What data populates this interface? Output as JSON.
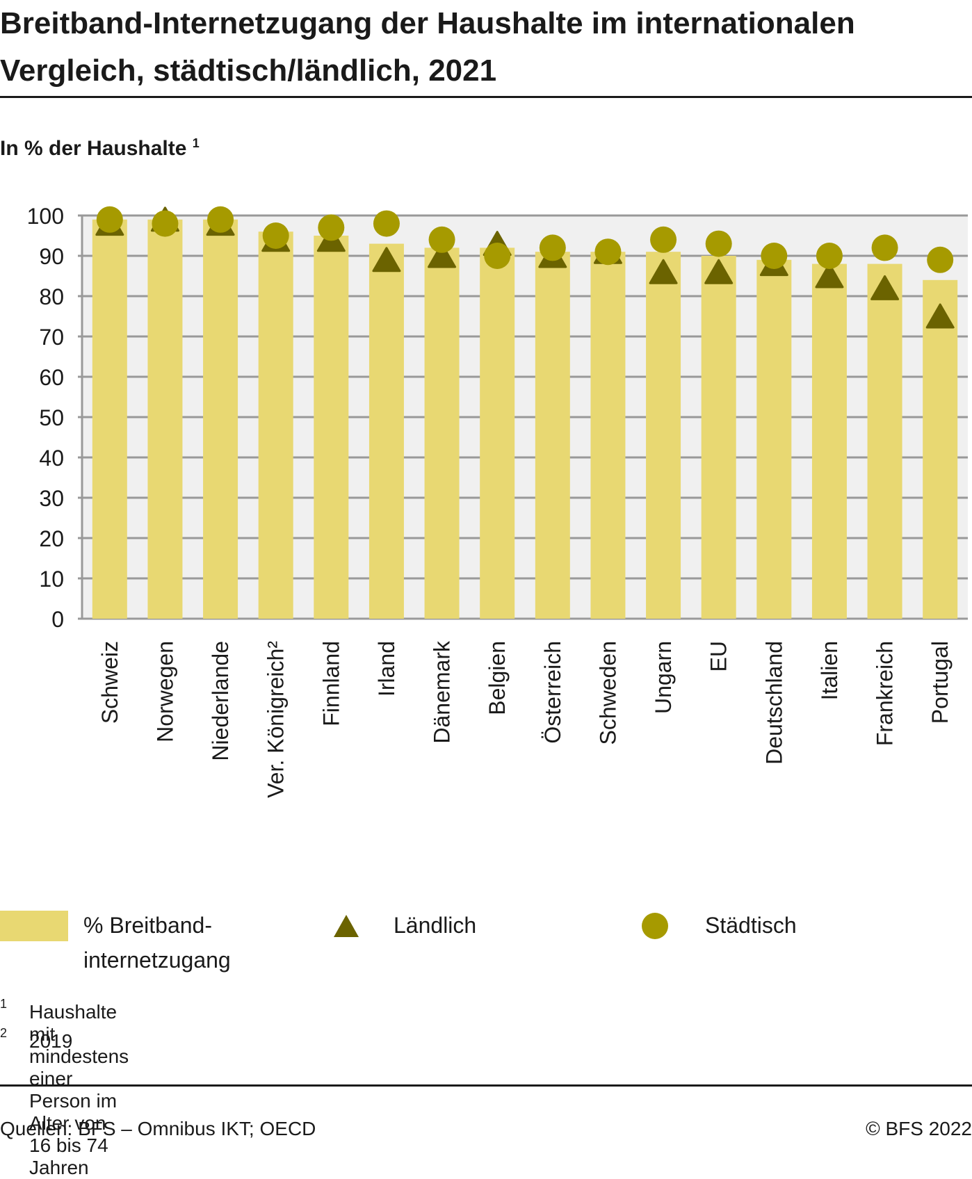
{
  "title": "Breitband-Internetzugang der Haushalte im internationalen Vergleich, städtisch/ländlich, 2021",
  "unit_label": "In % der Haushalte",
  "unit_footnote": "1",
  "legend": {
    "bar": "% Breitband-internetzugang",
    "triangle": "Ländlich",
    "circle": "Städtisch"
  },
  "colors": {
    "bar": "#e8d872",
    "triangle": "#6b6300",
    "circle": "#a69a00",
    "plot_bg": "#f0f0f0",
    "grid": "#999999"
  },
  "footnotes": [
    {
      "num": "1",
      "text": "Haushalte mit mindestens einer Person im Alter von 16 bis 74 Jahren"
    },
    {
      "num": "2",
      "text": "2019"
    }
  ],
  "source": "Quellen: BFS – Omnibus IKT; OECD",
  "copyright": "© BFS 2022",
  "chart_data": {
    "type": "bar",
    "title": "Breitband-Internetzugang der Haushalte im internationalen Vergleich, städtisch/ländlich, 2021",
    "ylabel": "In % der Haushalte",
    "xlabel": "",
    "ylim": [
      0,
      100
    ],
    "yticks": [
      0,
      10,
      20,
      30,
      40,
      50,
      60,
      70,
      80,
      90,
      100
    ],
    "grid": true,
    "legend_position": "bottom",
    "categories": [
      "Schweiz",
      "Norwegen",
      "Niederlande",
      "Ver. Königreich²",
      "Finnland",
      "Irland",
      "Dänemark",
      "Belgien",
      "Österreich",
      "Schweden",
      "Ungarn",
      "EU",
      "Deutschland",
      "Italien",
      "Frankreich",
      "Portugal"
    ],
    "series": [
      {
        "name": "% Breitband-internetzugang",
        "kind": "bar",
        "values": [
          99,
          99,
          99,
          96,
          95,
          93,
          92,
          92,
          91,
          91,
          91,
          90,
          89,
          88,
          88,
          84
        ]
      },
      {
        "name": "Ländlich",
        "kind": "triangle",
        "values": [
          98,
          99,
          98,
          94,
          94,
          89,
          90,
          93,
          90,
          91,
          86,
          86,
          88,
          85,
          82,
          75
        ]
      },
      {
        "name": "Städtisch",
        "kind": "circle",
        "values": [
          99,
          98,
          99,
          95,
          97,
          98,
          94,
          90,
          92,
          91,
          94,
          93,
          90,
          90,
          92,
          89
        ]
      }
    ]
  }
}
